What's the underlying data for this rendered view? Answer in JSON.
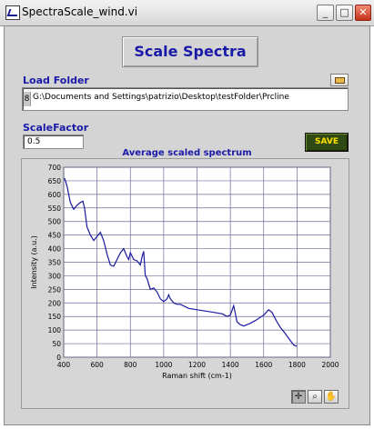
{
  "window": {
    "title": "SpectraScale_wind.vi",
    "buttons": {
      "minimize": "_",
      "maximize": "□",
      "close": "✕"
    }
  },
  "header": {
    "title": "Scale Spectra"
  },
  "load_folder": {
    "label": "Load Folder",
    "path": "G:\\Documents and Settings\\patrizio\\Desktop\\testFolder\\Prcline",
    "indicator": "8"
  },
  "scale_factor": {
    "label": "ScaleFactor",
    "value": "0.5"
  },
  "save_button": {
    "label": "SAVE"
  },
  "graph": {
    "palette_icons": [
      "crosshair-icon",
      "zoom-icon",
      "pan-hand-icon"
    ]
  },
  "chart_data": {
    "type": "line",
    "title": "Average scaled spectrum",
    "xlabel": "Raman shift (cm-1)",
    "ylabel": "Intensity (a.u.)",
    "xlim": [
      400,
      2000
    ],
    "ylim": [
      0,
      700
    ],
    "xticks": [
      400,
      600,
      800,
      1000,
      1200,
      1400,
      1600,
      1800,
      2000
    ],
    "yticks": [
      0,
      50,
      100,
      150,
      200,
      250,
      300,
      350,
      400,
      450,
      500,
      550,
      600,
      650,
      700
    ],
    "grid": true,
    "line_color": "#1a1aa0",
    "plot_bg": "#ffffff",
    "grid_color": "#6b6b9a",
    "series": [
      {
        "x": [
          405,
          420,
          440,
          460,
          480,
          500,
          515,
          525,
          540,
          560,
          580,
          600,
          620,
          640,
          660,
          680,
          700,
          720,
          740,
          760,
          780,
          790,
          800,
          820,
          840,
          860,
          870,
          880,
          890,
          900,
          920,
          940,
          960,
          980,
          1000,
          1020,
          1030,
          1040,
          1060,
          1080,
          1100,
          1150,
          1200,
          1250,
          1300,
          1350,
          1380,
          1400,
          1420,
          1440,
          1460,
          1480,
          1500,
          1520,
          1550,
          1600,
          1630,
          1650,
          1680,
          1700,
          1720,
          1750,
          1780,
          1800
        ],
        "y": [
          660,
          630,
          570,
          545,
          560,
          570,
          575,
          550,
          480,
          450,
          430,
          445,
          460,
          430,
          380,
          340,
          335,
          360,
          385,
          400,
          370,
          360,
          385,
          360,
          355,
          340,
          370,
          390,
          300,
          290,
          250,
          255,
          240,
          215,
          205,
          215,
          230,
          215,
          200,
          195,
          195,
          180,
          175,
          170,
          165,
          160,
          150,
          155,
          190,
          130,
          120,
          115,
          120,
          125,
          135,
          155,
          175,
          165,
          130,
          110,
          95,
          70,
          45,
          40
        ]
      }
    ]
  }
}
